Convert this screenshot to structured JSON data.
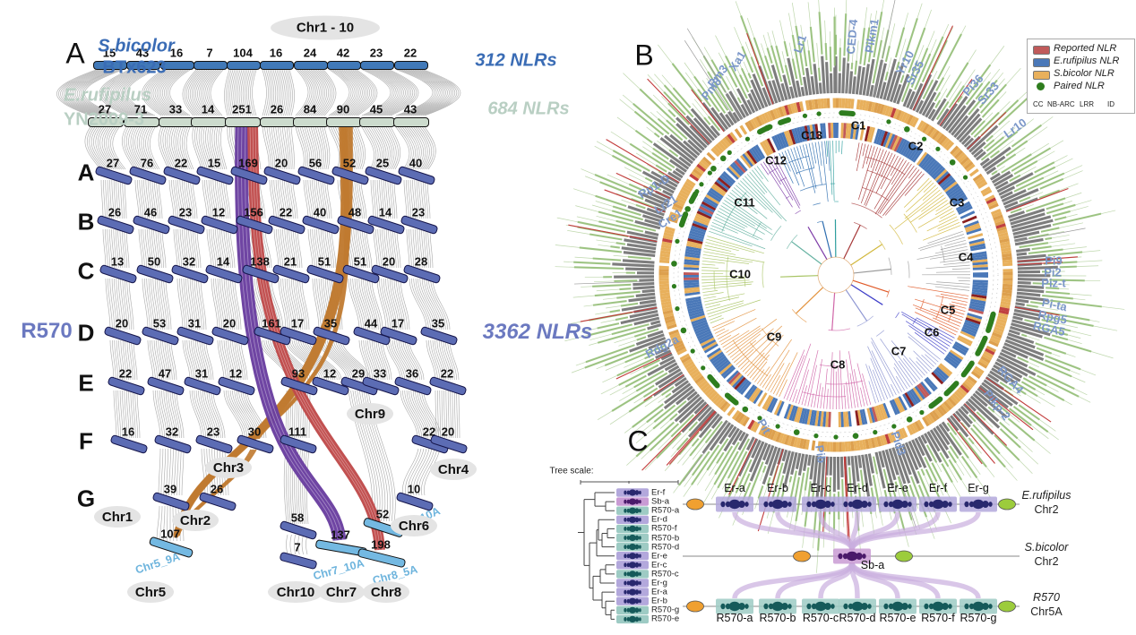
{
  "panels": {
    "a": "A",
    "b": "B",
    "c": "C"
  },
  "panelA": {
    "top_oval": "Chr1 - 10",
    "species1": {
      "name": "S.bicolor",
      "line2": "BTx623",
      "nlr": "312 NLRs"
    },
    "species2": {
      "name": "E.rufipilus",
      "line2": "YN2009-3",
      "nlr": "684 NLRs"
    },
    "species3": {
      "name": "R570",
      "nlr": "3362 NLRs"
    },
    "row_letters": [
      "A",
      "B",
      "C",
      "D",
      "E",
      "F",
      "G"
    ],
    "sb_counts": [
      15,
      43,
      16,
      7,
      104,
      16,
      24,
      42,
      23,
      22
    ],
    "er_counts": [
      27,
      71,
      33,
      14,
      251,
      26,
      84,
      90,
      45,
      43
    ],
    "matrix": {
      "A": [
        27,
        76,
        22,
        15,
        169,
        20,
        56,
        52,
        25,
        40
      ],
      "B": [
        26,
        46,
        23,
        12,
        156,
        22,
        40,
        48,
        14,
        23
      ],
      "C": [
        13,
        50,
        32,
        14,
        138,
        21,
        51,
        51,
        20,
        28
      ],
      "D": [
        20,
        53,
        31,
        20,
        161,
        17,
        35,
        44,
        17,
        35
      ],
      "E": [
        22,
        47,
        31,
        12,
        93,
        12,
        29,
        33,
        36,
        22
      ],
      "F": [
        16,
        32,
        23,
        30,
        111,
        null,
        null,
        null,
        22,
        20
      ],
      "G": [
        null,
        39,
        26,
        null,
        58,
        null,
        null,
        null,
        10,
        null
      ]
    },
    "extra_bars": [
      {
        "value": "107",
        "chr": "Chr5_9A"
      },
      {
        "value": "7",
        "chr": ""
      },
      {
        "value": "137",
        "chr": "Chr7_10A"
      },
      {
        "value": "52",
        "chr": "Chr8_10A"
      },
      {
        "value": "198",
        "chr": "Chr8_5A"
      }
    ],
    "chr_ovals": [
      "Chr1",
      "Chr2",
      "Chr3",
      "Chr4",
      "Chr5",
      "Chr6",
      "Chr7",
      "Chr8",
      "Chr9",
      "Chr10"
    ]
  },
  "panelB": {
    "cluster_labels": [
      "C1",
      "C2",
      "C3",
      "C4",
      "C5",
      "C6",
      "C7",
      "C8",
      "C9",
      "C10",
      "C11",
      "C12",
      "C13"
    ],
    "gene_labels": [
      "Pm3",
      "Pm8",
      "Xa1",
      "Lr1",
      "CED-4",
      "Pikm1",
      "Yr10",
      "Sr35",
      "Pi36",
      "Sr33",
      "Lr10",
      "Pi9",
      "Pi2",
      "Piz-t",
      "Pi-ta",
      "Rpg5",
      "RGA5",
      "RGA4",
      "Pikp-2",
      "Pid3",
      "Pib",
      "Pit",
      "Rdg2a",
      "Rp1-D",
      "Lr21",
      "Cre1"
    ],
    "legend": {
      "items": [
        {
          "label": "Reported NLR",
          "color": "#c05a5a"
        },
        {
          "label": "E.rufipilus NLR",
          "color": "#4a78b8"
        },
        {
          "label": "S.bicolor NLR",
          "color": "#e8b05c"
        },
        {
          "label": "Paired NLR",
          "color": "#2e7d1e"
        }
      ],
      "domains": [
        "CC",
        "NB-ARC",
        "LRR",
        "ID"
      ],
      "domain_colors": [
        "#e8b05c",
        "#8a8a8a",
        "#7fb96a",
        "#c0485a"
      ]
    }
  },
  "panelC": {
    "tree_scale_label": "Tree scale:",
    "leaves": [
      {
        "label": "Er-f",
        "t": "er"
      },
      {
        "label": "Sb-a",
        "t": "sb"
      },
      {
        "label": "R570-a",
        "t": "r"
      },
      {
        "label": "Er-d",
        "t": "er"
      },
      {
        "label": "R570-f",
        "t": "r"
      },
      {
        "label": "R570-b",
        "t": "r"
      },
      {
        "label": "R570-d",
        "t": "r"
      },
      {
        "label": "Er-e",
        "t": "er"
      },
      {
        "label": "Er-c",
        "t": "er"
      },
      {
        "label": "R570-c",
        "t": "r"
      },
      {
        "label": "Er-g",
        "t": "er"
      },
      {
        "label": "Er-a",
        "t": "er"
      },
      {
        "label": "Er-b",
        "t": "er"
      },
      {
        "label": "R570-g",
        "t": "r"
      },
      {
        "label": "R570-e",
        "t": "r"
      }
    ],
    "top_genes": [
      "Er-a",
      "Er-b",
      "Er-c",
      "Er-d",
      "Er-e",
      "Er-f",
      "Er-g"
    ],
    "bottom_genes": [
      "R570-a",
      "R570-b",
      "R570-c",
      "R570-d",
      "R570-e",
      "R570-f",
      "R570-g"
    ],
    "mid_gene": "Sb-a",
    "tracks": [
      {
        "line1": "E.rufipilus",
        "line2": "Chr2"
      },
      {
        "line1": "S.bicolor",
        "line2": "Chr2"
      },
      {
        "line1": "R570",
        "line2": "Chr5A"
      }
    ]
  },
  "colors": {
    "sbicolor_blue": "#3a6cb5",
    "erufipilus_green": "#b9cfc3",
    "r570_purple": "#6b79c0",
    "lightblue": "#6db4dd",
    "ribbon_purple": "#6a3fa0",
    "ribbon_red": "#bf4a4a",
    "ribbon_orange": "#c07a30"
  }
}
